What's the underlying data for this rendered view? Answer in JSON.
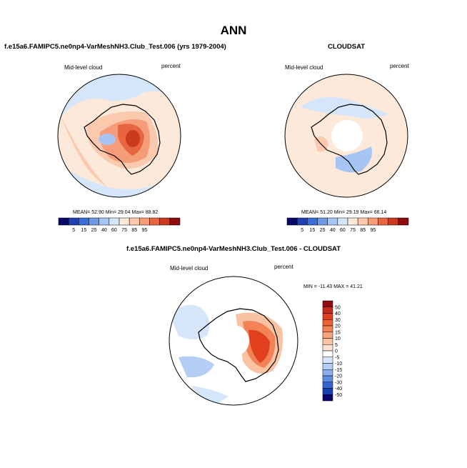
{
  "main_title": "ANN",
  "panels": {
    "left": {
      "title": "f.e15a6.FAMIPC5.ne0np4-VarMeshNH3.Club_Test.006 (yrs 1979-2004)",
      "variable": "Mid-level cloud",
      "units": "percent",
      "stats": "MEAN=  52.90   Min=  29.04   Max=  88.82"
    },
    "right": {
      "title": "CLOUDSAT",
      "variable": "Mid-level cloud",
      "units": "percent",
      "stats": "MEAN=  51.20   Min=  29.19   Max=  66.14"
    },
    "diff": {
      "title": "f.e15a6.FAMIPC5.ne0np4-VarMeshNH3.Club_Test.006 - CLOUDSAT",
      "variable": "Mid-level cloud",
      "units": "percent",
      "stats": "MIN = -11.43  MAX =  41.21"
    }
  },
  "chart_data": [
    {
      "type": "heatmap",
      "name": "model",
      "projection": "south polar stereographic",
      "title": "f.e15a6.FAMIPC5.ne0np4-VarMeshNH3.Club_Test.006 (yrs 1979-2004)",
      "variable": "Mid-level cloud",
      "units": "percent",
      "mean": 52.9,
      "min": 29.04,
      "max": 88.82,
      "colorbar_ticks": [
        "5",
        "15",
        "25",
        "40",
        "60",
        "75",
        "85",
        "95"
      ],
      "colorbar_colors": [
        "#08086b",
        "#1f3fb4",
        "#3c6ed8",
        "#6e9ae6",
        "#a6c5f2",
        "#d6e6fa",
        "#fde9d9",
        "#fbc9ad",
        "#f59d79",
        "#e8663f",
        "#c93a1f",
        "#8f0c0c"
      ]
    },
    {
      "type": "heatmap",
      "name": "observations",
      "projection": "south polar stereographic",
      "title": "CLOUDSAT",
      "variable": "Mid-level cloud",
      "units": "percent",
      "mean": 51.2,
      "min": 29.19,
      "max": 66.14,
      "colorbar_ticks": [
        "5",
        "15",
        "25",
        "40",
        "60",
        "75",
        "85",
        "95"
      ],
      "colorbar_colors": [
        "#08086b",
        "#1f3fb4",
        "#3c6ed8",
        "#6e9ae6",
        "#a6c5f2",
        "#d6e6fa",
        "#fde9d9",
        "#fbc9ad",
        "#f59d79",
        "#e8663f",
        "#c93a1f",
        "#8f0c0c"
      ]
    },
    {
      "type": "heatmap",
      "name": "difference",
      "projection": "south polar stereographic",
      "title": "f.e15a6.FAMIPC5.ne0np4-VarMeshNH3.Club_Test.006 - CLOUDSAT",
      "variable": "Mid-level cloud",
      "units": "percent",
      "min": -11.43,
      "max": 41.21,
      "colorbar_ticks": [
        "50",
        "40",
        "30",
        "20",
        "15",
        "10",
        "5",
        "0",
        "-5",
        "-10",
        "-15",
        "-20",
        "-30",
        "-40",
        "-50"
      ],
      "colorbar_colors": [
        "#8f0c0c",
        "#c42a1b",
        "#e0401e",
        "#ee6236",
        "#f38257",
        "#f6a27c",
        "#f9c2a3",
        "#fce2d2",
        "#ffffff",
        "#d6e6fa",
        "#b3cdf4",
        "#8ab0ec",
        "#5f8fe0",
        "#3564d1",
        "#1a3fae",
        "#08086b"
      ]
    }
  ]
}
